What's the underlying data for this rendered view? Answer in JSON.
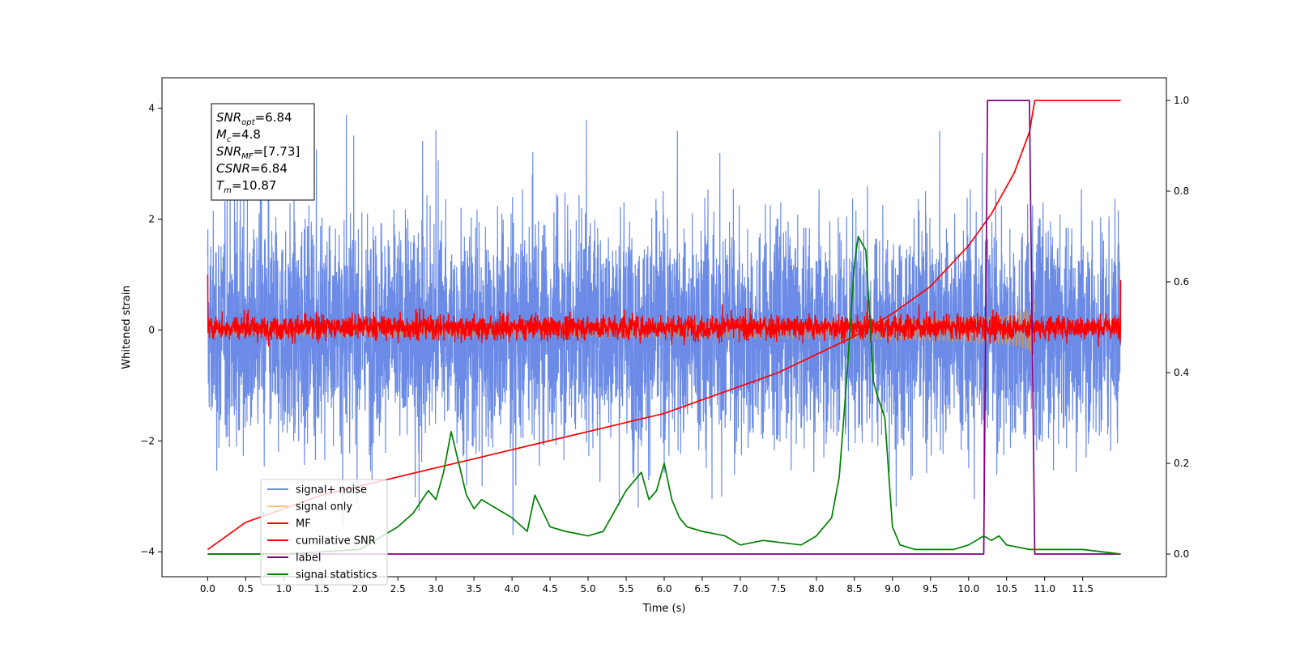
{
  "chart_data": {
    "type": "line",
    "xlabel": "Time (s)",
    "ylabel": "Whitened strain",
    "xlim": [
      -0.6,
      12.6
    ],
    "ylim": [
      -4.45,
      4.55
    ],
    "y2lim": [
      -0.05,
      1.05
    ],
    "x_ticks": [
      0.0,
      0.5,
      1.0,
      1.5,
      2.0,
      2.5,
      3.0,
      3.5,
      4.0,
      4.5,
      5.0,
      5.5,
      6.0,
      6.5,
      7.0,
      7.5,
      8.0,
      8.5,
      9.0,
      9.5,
      10.0,
      10.5,
      11.0,
      11.5
    ],
    "x_tick_labels": [
      "0.0",
      "0.5",
      "1.0",
      "1.5",
      "2.0",
      "2.5",
      "3.0",
      "3.5",
      "4.0",
      "4.5",
      "5.0",
      "5.5",
      "6.0",
      "6.5",
      "7.0",
      "7.5",
      "8.0",
      "8.5",
      "9.0",
      "9.5",
      "10.0",
      "10.5",
      "11.0",
      "11.5"
    ],
    "y_ticks": [
      4,
      2,
      0,
      -2,
      -4
    ],
    "y_tick_labels": [
      "4",
      "2",
      "0",
      "−2",
      "−4"
    ],
    "y2_ticks": [
      1.0,
      0.8,
      0.6,
      0.4,
      0.2,
      0.0
    ],
    "y2_tick_labels": [
      "1.0",
      "0.8",
      "0.6",
      "0.4",
      "0.2",
      "0.0"
    ],
    "grid": false,
    "legend_position": "lower-left",
    "series": [
      {
        "name": "signal+ noise",
        "axis": "left",
        "color": "#6b8be6",
        "x_range": [
          0.0,
          12.0
        ],
        "amplitude_envelope": [
          -3.7,
          4.1
        ],
        "typical_band": [
          -2.0,
          2.0
        ]
      },
      {
        "name": "signal only",
        "axis": "left",
        "color": "#f5c77e",
        "x_range": [
          0.0,
          10.87
        ],
        "peak_amplitude": 0.55
      },
      {
        "name": "MF",
        "axis": "left",
        "color": "#ff0000",
        "x_range": [
          0.0,
          12.0
        ],
        "typical_band": [
          -0.2,
          0.3
        ],
        "edge_values": [
          1.0,
          0.9
        ]
      },
      {
        "name": "cumilative SNR",
        "axis": "right",
        "color": "#ff0000",
        "x": [
          0.0,
          0.5,
          1.0,
          1.5,
          2.0,
          2.5,
          3.0,
          3.5,
          4.0,
          4.5,
          5.0,
          5.5,
          6.0,
          6.5,
          7.0,
          7.5,
          8.0,
          8.5,
          9.0,
          9.5,
          10.0,
          10.3,
          10.6,
          10.8,
          10.87,
          12.0
        ],
        "values": [
          0.01,
          0.07,
          0.1,
          0.13,
          0.15,
          0.17,
          0.19,
          0.21,
          0.23,
          0.25,
          0.27,
          0.29,
          0.31,
          0.34,
          0.37,
          0.4,
          0.44,
          0.48,
          0.53,
          0.59,
          0.68,
          0.75,
          0.84,
          0.93,
          1.0,
          1.0
        ]
      },
      {
        "name": "label",
        "axis": "right",
        "color": "#800080",
        "x": [
          0.0,
          10.2,
          10.25,
          10.8,
          10.87,
          12.0
        ],
        "values": [
          0.0,
          0.0,
          1.0,
          1.0,
          0.0,
          0.0
        ]
      },
      {
        "name": "signal statistics",
        "axis": "right",
        "color": "#008000",
        "x": [
          0.0,
          1.0,
          2.0,
          2.5,
          2.7,
          2.9,
          3.0,
          3.1,
          3.2,
          3.3,
          3.4,
          3.5,
          3.6,
          3.8,
          4.0,
          4.2,
          4.3,
          4.5,
          4.7,
          5.0,
          5.2,
          5.5,
          5.7,
          5.8,
          5.9,
          6.0,
          6.1,
          6.2,
          6.3,
          6.5,
          6.8,
          7.0,
          7.3,
          7.8,
          8.0,
          8.2,
          8.3,
          8.4,
          8.5,
          8.55,
          8.65,
          8.75,
          8.8,
          8.9,
          9.0,
          9.1,
          9.3,
          9.5,
          9.8,
          10.0,
          10.2,
          10.3,
          10.4,
          10.5,
          10.8,
          11.0,
          11.5,
          12.0
        ],
        "values": [
          0.0,
          0.0,
          0.01,
          0.06,
          0.09,
          0.14,
          0.12,
          0.18,
          0.27,
          0.2,
          0.13,
          0.1,
          0.12,
          0.1,
          0.08,
          0.05,
          0.13,
          0.06,
          0.05,
          0.04,
          0.05,
          0.14,
          0.18,
          0.12,
          0.14,
          0.2,
          0.12,
          0.08,
          0.06,
          0.05,
          0.04,
          0.02,
          0.03,
          0.02,
          0.04,
          0.08,
          0.17,
          0.39,
          0.64,
          0.7,
          0.67,
          0.38,
          0.35,
          0.3,
          0.06,
          0.02,
          0.01,
          0.01,
          0.01,
          0.02,
          0.04,
          0.03,
          0.04,
          0.02,
          0.01,
          0.01,
          0.01,
          0.0
        ]
      }
    ],
    "annotation": {
      "lines": [
        {
          "base": "SNR",
          "sub": "opt",
          "value": "=6.84"
        },
        {
          "base": "M",
          "sub": "c",
          "value": "=4.8"
        },
        {
          "base": "SNR",
          "sub": "MF",
          "value": "=[7.73]"
        },
        {
          "base": "CSNR",
          "sub": "",
          "value": "=6.84"
        },
        {
          "base": "T",
          "sub": "m",
          "value": "=10.87"
        }
      ]
    }
  }
}
